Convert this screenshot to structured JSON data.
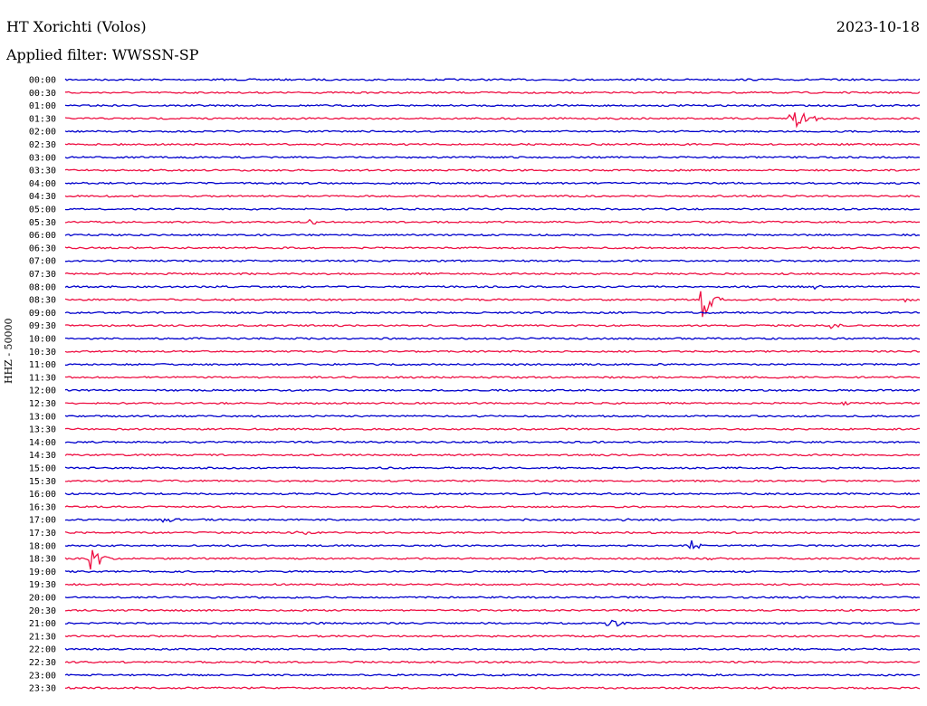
{
  "header": {
    "title": "HT Xorichti (Volos)",
    "date": "2023-10-18",
    "filter": "Applied filter: WWSSN-SP"
  },
  "chart_data": {
    "type": "line",
    "ylabel": "HHZ - 50000",
    "row_labels": [
      "00:00",
      "00:30",
      "01:00",
      "01:30",
      "02:00",
      "02:30",
      "03:00",
      "03:30",
      "04:00",
      "04:30",
      "05:00",
      "05:30",
      "06:00",
      "06:30",
      "07:00",
      "07:30",
      "08:00",
      "08:30",
      "09:00",
      "09:30",
      "10:00",
      "10:30",
      "11:00",
      "11:30",
      "12:00",
      "12:30",
      "13:00",
      "13:30",
      "14:00",
      "14:30",
      "15:00",
      "15:30",
      "16:00",
      "16:30",
      "17:00",
      "17:30",
      "18:00",
      "18:30",
      "19:00",
      "19:30",
      "20:00",
      "20:30",
      "21:00",
      "21:30",
      "22:00",
      "22:30",
      "23:00",
      "23:30"
    ],
    "colors": [
      "#0000cc",
      "#ee1144"
    ],
    "minutes_per_row": 30,
    "events": [
      {
        "row": 3,
        "minute": 25.5,
        "amp": 22
      },
      {
        "row": 3,
        "minute": 26.2,
        "amp": 5
      },
      {
        "row": 5,
        "minute": 24.8,
        "amp": 3
      },
      {
        "row": 11,
        "minute": 8.6,
        "amp": 4
      },
      {
        "row": 16,
        "minute": 26.3,
        "amp": 3
      },
      {
        "row": 17,
        "minute": 22.4,
        "amp": 26
      },
      {
        "row": 17,
        "minute": 29.5,
        "amp": 3
      },
      {
        "row": 19,
        "minute": 26.9,
        "amp": 5
      },
      {
        "row": 25,
        "minute": 27.3,
        "amp": 3
      },
      {
        "row": 34,
        "minute": 3.5,
        "amp": 6
      },
      {
        "row": 34,
        "minute": 19.6,
        "amp": 2
      },
      {
        "row": 35,
        "minute": 8.2,
        "amp": 5
      },
      {
        "row": 36,
        "minute": 22.0,
        "amp": 6
      },
      {
        "row": 37,
        "minute": 0.9,
        "amp": 18
      },
      {
        "row": 37,
        "minute": 22.5,
        "amp": 3
      },
      {
        "row": 42,
        "minute": 19.1,
        "amp": 8
      }
    ]
  }
}
